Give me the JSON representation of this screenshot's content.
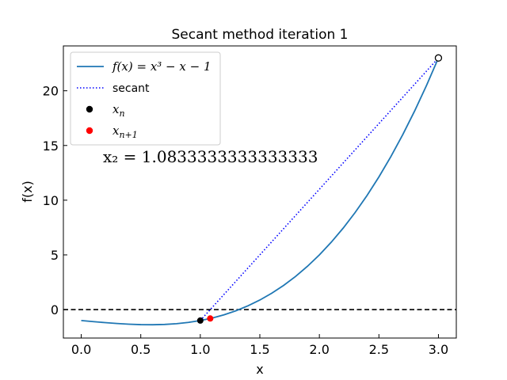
{
  "chart_data": {
    "type": "line",
    "title": "Secant method iteration 1",
    "xlabel": "x",
    "ylabel": "f(x)",
    "xlim": [
      -0.15,
      3.15
    ],
    "ylim": [
      -2.6,
      24.1
    ],
    "xticks": [
      0.0,
      0.5,
      1.0,
      1.5,
      2.0,
      2.5,
      3.0
    ],
    "xtick_labels": [
      "0.0",
      "0.5",
      "1.0",
      "1.5",
      "2.0",
      "2.5",
      "3.0"
    ],
    "yticks": [
      0,
      5,
      10,
      15,
      20
    ],
    "ytick_labels": [
      "0",
      "5",
      "10",
      "15",
      "20"
    ],
    "grid": false,
    "legend_position": "top-left",
    "function": {
      "label": "f(x) = x³ − x − 1",
      "color": "#1f77b4",
      "x": [
        0.0,
        0.1,
        0.2,
        0.3,
        0.4,
        0.5,
        0.6,
        0.7,
        0.8,
        0.9,
        1.0,
        1.1,
        1.2,
        1.3,
        1.4,
        1.5,
        1.6,
        1.7,
        1.8,
        1.9,
        2.0,
        2.1,
        2.2,
        2.3,
        2.4,
        2.5,
        2.6,
        2.7,
        2.8,
        2.9,
        3.0
      ],
      "y": [
        -1.0,
        -1.099,
        -1.192,
        -1.273,
        -1.336,
        -1.375,
        -1.384,
        -1.357,
        -1.288,
        -1.171,
        -1.0,
        -0.769,
        -0.472,
        -0.103,
        0.344,
        0.875,
        1.496,
        2.213,
        3.032,
        3.959,
        5.0,
        6.161,
        7.448,
        8.867,
        10.424,
        12.125,
        13.976,
        15.983,
        18.152,
        20.489,
        23.0
      ]
    },
    "secant": {
      "label": "secant",
      "color": "#0000ff",
      "x": [
        1.0,
        3.0
      ],
      "y": [
        -1.0,
        23.0
      ]
    },
    "zero_line": {
      "y": 0,
      "color": "#000000"
    },
    "points": [
      {
        "label": "x_n",
        "x": 1.0,
        "y": -1.0,
        "color": "#000000",
        "fill": "filled"
      },
      {
        "label": "x_{n+1}",
        "x": 1.0833333333333333,
        "y": -0.8119,
        "color": "#ff0000",
        "fill": "filled"
      },
      {
        "label": "",
        "x": 3.0,
        "y": 23.0,
        "color": "#000000",
        "fill": "open"
      }
    ],
    "annotation": {
      "text": "x₂ = 1.0833333333333333",
      "x": 0.18,
      "y": 14.0
    },
    "legend": [
      {
        "label": "f(x) = x³ − x − 1",
        "style": "line"
      },
      {
        "label": "secant",
        "style": "dotted"
      },
      {
        "label": "x",
        "sub": "n",
        "style": "marker-black"
      },
      {
        "label": "x",
        "sub": "n+1",
        "style": "marker-red"
      }
    ]
  }
}
